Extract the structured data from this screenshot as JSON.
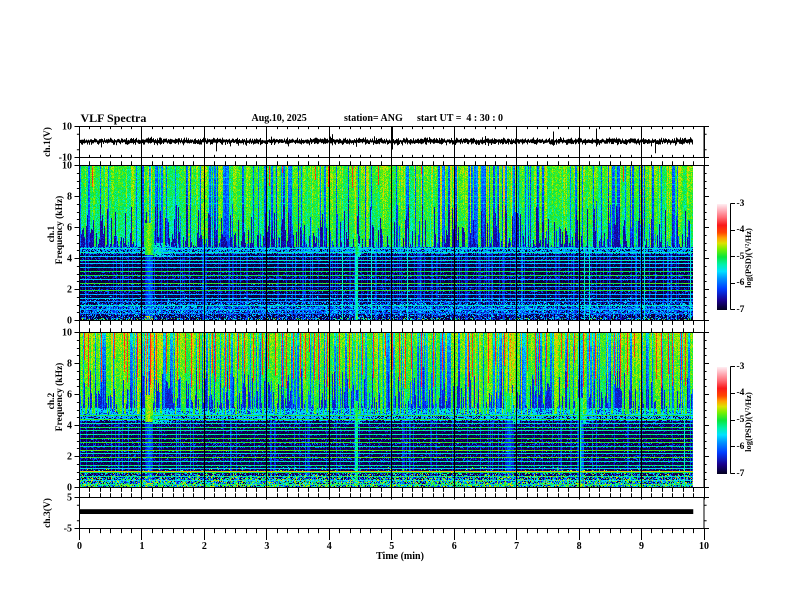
{
  "header": {
    "title": "VLF Spectra",
    "date": "Aug.10, 2025",
    "station": "station= ANG",
    "start_ut": "start UT =  4 : 30 : 0"
  },
  "x_axis": {
    "label": "Time (min)",
    "min": 0,
    "max": 10,
    "tick_labels": [
      "0",
      "1",
      "2",
      "3",
      "4",
      "5",
      "6",
      "7",
      "8",
      "9",
      "10"
    ],
    "minor_per_major": 6,
    "data_end_min": 9.82
  },
  "colorbar": {
    "label": "log(PSD)(V²/Hz)",
    "tick_labels": [
      "-3",
      "-4",
      "-5",
      "-6",
      "-7"
    ],
    "vmin": -7,
    "vmax": -3,
    "stops": [
      [
        0.0,
        2,
        0,
        30
      ],
      [
        0.09,
        25,
        0,
        140
      ],
      [
        0.2,
        0,
        60,
        255
      ],
      [
        0.3,
        0,
        150,
        255
      ],
      [
        0.365,
        0,
        225,
        255
      ],
      [
        0.43,
        0,
        240,
        170
      ],
      [
        0.5,
        10,
        230,
        60
      ],
      [
        0.575,
        120,
        240,
        0
      ],
      [
        0.63,
        220,
        225,
        0
      ],
      [
        0.68,
        255,
        160,
        0
      ],
      [
        0.73,
        255,
        70,
        0
      ],
      [
        0.8,
        250,
        25,
        25
      ],
      [
        0.875,
        255,
        110,
        120
      ],
      [
        0.95,
        255,
        185,
        195
      ],
      [
        1.0,
        255,
        238,
        242
      ]
    ]
  },
  "panels": {
    "wave1": {
      "ylabel": "ch.1(V)",
      "ytick_labels": [
        "10",
        "-10"
      ],
      "ymin": -10,
      "ymax": 10,
      "baseline": 0.45,
      "noise_amp": 1.0,
      "seed": 77,
      "spikes": [
        {
          "t": 0.33,
          "hi": 2.2,
          "lo": -3.6
        },
        {
          "t": 0.85,
          "hi": 2.6,
          "lo": -1.5
        },
        {
          "t": 1.28,
          "hi": 3.0,
          "lo": -1.8
        },
        {
          "t": 2.18,
          "hi": 1.5,
          "lo": -6.2
        },
        {
          "t": 2.52,
          "hi": 2.8,
          "lo": -1.2
        },
        {
          "t": 3.06,
          "hi": 3.6,
          "lo": -2.0
        },
        {
          "t": 3.32,
          "hi": 3.0,
          "lo": -1.5
        },
        {
          "t": 4.04,
          "hi": 5.2,
          "lo": -2.2
        },
        {
          "t": 4.42,
          "hi": 2.5,
          "lo": -3.2
        },
        {
          "t": 5.0,
          "hi": 10.5,
          "lo": -5.0
        },
        {
          "t": 5.52,
          "hi": 3.0,
          "lo": -1.5
        },
        {
          "t": 6.48,
          "hi": 4.0,
          "lo": -2.0
        },
        {
          "t": 7.57,
          "hi": 7.0,
          "lo": -2.5
        },
        {
          "t": 8.26,
          "hi": 9.0,
          "lo": -3.0
        },
        {
          "t": 9.2,
          "hi": 2.0,
          "lo": -7.5
        },
        {
          "t": 9.55,
          "hi": 3.0,
          "lo": -1.5
        }
      ]
    },
    "spec1": {
      "ylabel_ch": "ch.1",
      "ylabel_freq": "Frequency (kHz)",
      "ytick_labels": [
        "10",
        "8",
        "6",
        "4",
        "2",
        "0"
      ],
      "fmin": 0,
      "fmax": 10,
      "seed": 1234,
      "brightness": 0.0,
      "red_prob": 0.012,
      "red_min_f": 8.6,
      "red_span": 1.2,
      "top_base": -5.8,
      "top_gain": 1.1,
      "speckle": {
        "f_center": 0.75,
        "f_width": 0.48,
        "gain": 1.15
      },
      "lines": [
        [
          0.49,
          -6.05
        ],
        [
          0.74,
          -5.75
        ],
        [
          0.98,
          -5.35
        ],
        [
          1.23,
          -5.85
        ],
        [
          1.47,
          -5.6
        ],
        [
          1.72,
          -5.7
        ],
        [
          1.96,
          -4.95
        ],
        [
          2.21,
          -5.7
        ],
        [
          2.45,
          -4.9
        ],
        [
          2.7,
          -5.55
        ],
        [
          2.94,
          -5.0
        ],
        [
          3.19,
          -5.05
        ],
        [
          3.43,
          -5.55
        ],
        [
          3.68,
          -5.6
        ],
        [
          3.92,
          -5.35
        ],
        [
          4.17,
          -5.55
        ],
        [
          4.42,
          -5.3
        ],
        [
          4.65,
          -5.38
        ],
        [
          7.56,
          -5.75
        ],
        [
          8.05,
          -5.8
        ],
        [
          8.8,
          -5.75
        ],
        [
          9.29,
          -5.7
        ]
      ],
      "band": {
        "f_lo": 4.33,
        "f_hi": 4.72,
        "level": -5.95
      },
      "events": [
        {
          "t0": 1.04,
          "t1": 1.17,
          "f_lo": 4.25,
          "blob_f_hi": 6.3,
          "level": -4.75,
          "tail": 0.6,
          "column_level": -6.2
        },
        {
          "t0": 4.405,
          "t1": 4.445,
          "f_lo": 4.3,
          "blob_f_hi": 5.6,
          "level": -5.0,
          "tail": 0.1,
          "column_level": -5.35
        }
      ]
    },
    "spec2": {
      "ylabel_ch": "ch.2",
      "ylabel_freq": "Frequency (kHz)",
      "ytick_labels": [
        "10",
        "8",
        "6",
        "4",
        "2",
        "0"
      ],
      "fmin": 0,
      "fmax": 10,
      "seed": 5678,
      "brightness": 0.55,
      "red_prob": 0.3,
      "red_min_f": 6.4,
      "red_span": 2.8,
      "top_base": -5.45,
      "top_gain": 0.95,
      "speckle": {
        "f_center": 0.3,
        "f_width": 0.6,
        "gain": 1.8
      },
      "lines": [
        [
          0.25,
          -5.2
        ],
        [
          0.49,
          -5.6
        ],
        [
          0.74,
          -5.3
        ],
        [
          0.98,
          -5.1
        ],
        [
          1.08,
          -4.45
        ],
        [
          1.23,
          -5.45
        ],
        [
          1.47,
          -5.2
        ],
        [
          1.72,
          -5.3
        ],
        [
          1.96,
          -4.85
        ],
        [
          2.21,
          -5.3
        ],
        [
          2.45,
          -4.8
        ],
        [
          2.7,
          -5.2
        ],
        [
          2.94,
          -4.9
        ],
        [
          3.19,
          -4.95
        ],
        [
          3.43,
          -5.2
        ],
        [
          3.68,
          -5.25
        ],
        [
          3.92,
          -5.05
        ],
        [
          4.17,
          -5.25
        ],
        [
          4.42,
          -4.9
        ],
        [
          4.65,
          -4.95
        ],
        [
          7.56,
          -5.8
        ],
        [
          8.05,
          -5.85
        ],
        [
          8.8,
          -5.8
        ],
        [
          9.29,
          -5.75
        ]
      ],
      "band": {
        "f_lo": 4.33,
        "f_hi": 4.72,
        "level": -5.85
      },
      "edge_band": [
        4.72,
        5.15,
        -5.8
      ],
      "events": [
        {
          "t0": 1.04,
          "t1": 1.17,
          "f_lo": 4.25,
          "blob_f_hi": 6.0,
          "level": -4.65,
          "tail": 0.6,
          "column_level": -6.2
        },
        {
          "t0": 4.405,
          "t1": 4.445,
          "f_lo": 4.3,
          "blob_f_hi": 5.6,
          "level": -5.0,
          "tail": 0.1,
          "column_level": -5.3
        },
        {
          "t0": 6.8,
          "t1": 6.93,
          "f_lo": 4.9,
          "blob_f_hi": 6.1,
          "level": -5.2,
          "tail": 0.2,
          "column_level": -6.3
        },
        {
          "t0": 7.96,
          "t1": 8.05,
          "f_lo": 4.4,
          "blob_f_hi": 5.8,
          "level": -5.1,
          "tail": 0.15,
          "column_level": -6.0
        }
      ]
    },
    "wave3": {
      "ylabel": "ch.3(V)",
      "ytick_labels": [
        "5",
        "-5"
      ],
      "ymin": -5,
      "ymax": 5,
      "value": 0.45,
      "thickness_v": 1.55,
      "t_start": 0,
      "t_end": 9.82
    }
  },
  "chart_data": [
    {
      "type": "line",
      "title": "ch.1(V) voltage waveform",
      "xlabel": "Time (min)",
      "ylabel": "ch.1(V)",
      "xlim": [
        0,
        10
      ],
      "ylim": [
        -10,
        10
      ],
      "description": "broadband noise of about ±0.8 V around +0.5 V with impulsive spikes",
      "spikes_t_min": [
        0.33,
        0.85,
        1.28,
        2.18,
        2.52,
        3.06,
        3.32,
        4.04,
        4.42,
        5.0,
        5.52,
        6.48,
        7.57,
        8.26,
        9.2,
        9.55
      ],
      "spikes_v": [
        -3.6,
        2.6,
        3.0,
        -6.2,
        2.8,
        3.6,
        3.0,
        5.2,
        -3.2,
        10.5,
        3.0,
        4.0,
        7.0,
        9.0,
        -7.5,
        3.0
      ]
    },
    {
      "type": "heatmap",
      "title": "ch.1 VLF spectrogram",
      "xlabel": "Time (min)",
      "ylabel": "Frequency (kHz)",
      "xlim": [
        0,
        10
      ],
      "ylim": [
        0,
        10
      ],
      "zlabel": "log(PSD)(V²/Hz)",
      "zlim": [
        -7,
        -3
      ],
      "description": "sferic vertical streaks above ~4.7 kHz, strong line band at 4.3-4.7 kHz, harmonic comb lines every ~0.25 kHz below 4.7 kHz, speckle band near 0.8 kHz, bright bursts at t=1.1 and t=4.4 min",
      "line_frequencies_khz": [
        0.49,
        0.74,
        0.98,
        1.23,
        1.47,
        1.72,
        1.96,
        2.21,
        2.45,
        2.7,
        2.94,
        3.19,
        3.43,
        3.68,
        3.92,
        4.17,
        4.42,
        4.65
      ],
      "event_times_min": [
        1.1,
        4.42
      ]
    },
    {
      "type": "heatmap",
      "title": "ch.2 VLF spectrogram",
      "xlabel": "Time (min)",
      "ylabel": "Frequency (kHz)",
      "xlim": [
        0,
        10
      ],
      "ylim": [
        0,
        10
      ],
      "zlabel": "log(PSD)(V²/Hz)",
      "zlim": [
        -7,
        -3
      ],
      "description": "same structure as ch.1 but stronger: red saturated sferics above 6 kHz, bright green harmonic comb, bright low-frequency speckle band below 1 kHz",
      "line_frequencies_khz": [
        0.25,
        0.49,
        0.74,
        0.98,
        1.08,
        1.23,
        1.47,
        1.72,
        1.96,
        2.21,
        2.45,
        2.7,
        2.94,
        3.19,
        3.43,
        3.68,
        3.92,
        4.17,
        4.42,
        4.65
      ],
      "event_times_min": [
        1.1,
        4.42,
        6.85,
        8.0
      ]
    },
    {
      "type": "line",
      "title": "ch.3(V) voltage",
      "xlabel": "Time (min)",
      "ylabel": "ch.3(V)",
      "xlim": [
        0,
        10
      ],
      "ylim": [
        -5,
        5
      ],
      "description": "constant level of about +0.5 V from 0 to 9.8 min",
      "x": [
        0,
        9.82
      ],
      "y": [
        0.45,
        0.45
      ]
    }
  ],
  "geometry_note": "four stacked panels sharing the time axis; two colorbars for the spectrogram panels"
}
